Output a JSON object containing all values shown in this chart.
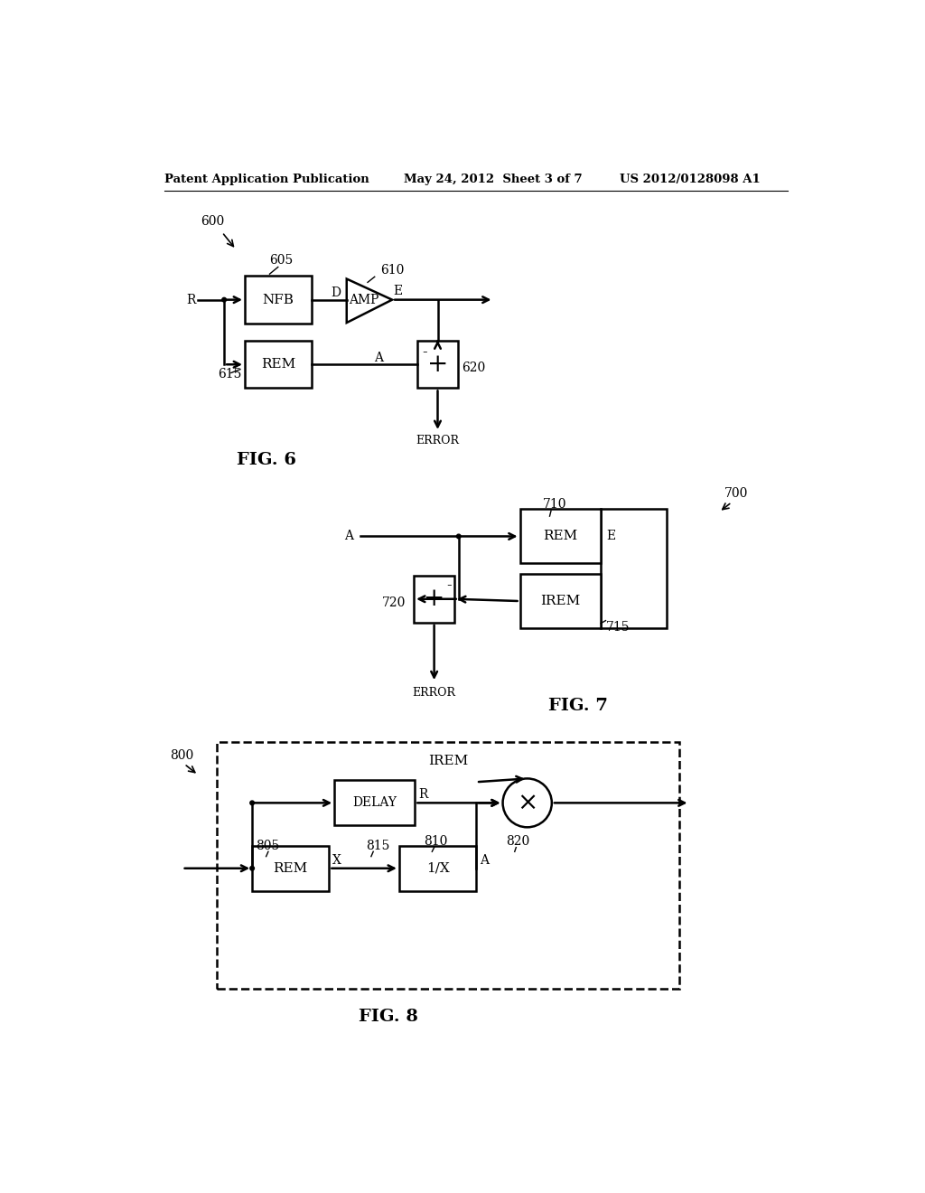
{
  "bg_color": "#ffffff",
  "header_left": "Patent Application Publication",
  "header_mid": "May 24, 2012  Sheet 3 of 7",
  "header_right": "US 2012/0128098 A1",
  "fig6": {
    "label": "FIG. 6",
    "num600": "600",
    "num605": "605",
    "num610": "610",
    "num615": "615",
    "num620": "620"
  },
  "fig7": {
    "label": "FIG. 7",
    "num700": "700",
    "num710": "710",
    "num715": "715",
    "num720": "720"
  },
  "fig8": {
    "label": "FIG. 8",
    "num800": "800",
    "num805": "805",
    "num810": "810",
    "num815": "815",
    "num820": "820"
  }
}
